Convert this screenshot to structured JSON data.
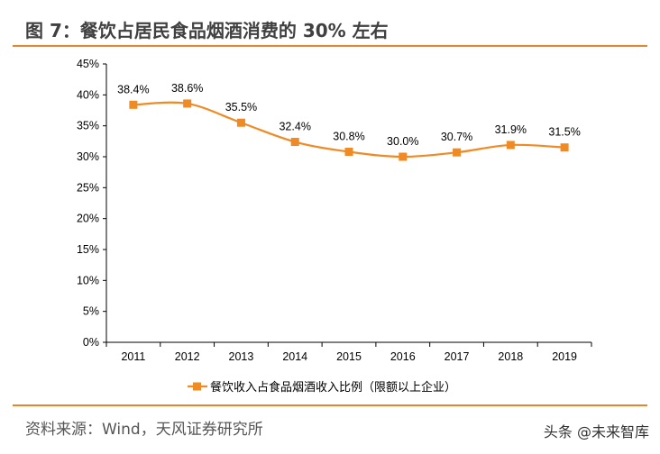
{
  "title": "图 7：餐饮占居民食品烟酒消费的 30% 左右",
  "source": "资料来源：Wind，天风证券研究所",
  "watermark": "头条 @未来智库",
  "colors": {
    "accent": "#e8842a",
    "series": "#f08a24",
    "axis": "#000000"
  },
  "chart_data": {
    "type": "line",
    "categories": [
      "2011",
      "2012",
      "2013",
      "2014",
      "2015",
      "2016",
      "2017",
      "2018",
      "2019"
    ],
    "series": [
      {
        "name": "餐饮收入占食品烟酒收入比例（限额以上企业）",
        "values": [
          38.4,
          38.6,
          35.5,
          32.4,
          30.8,
          30.0,
          30.7,
          31.9,
          31.5
        ],
        "marker": "square",
        "smooth": true
      }
    ],
    "data_labels": [
      "38.4%",
      "38.6%",
      "35.5%",
      "32.4%",
      "30.8%",
      "30.0%",
      "30.7%",
      "31.9%",
      "31.5%"
    ],
    "yticks": [
      "0%",
      "5%",
      "10%",
      "15%",
      "20%",
      "25%",
      "30%",
      "35%",
      "40%",
      "45%"
    ],
    "ylim": [
      0,
      45
    ],
    "grid": false,
    "legend": "bottom"
  }
}
